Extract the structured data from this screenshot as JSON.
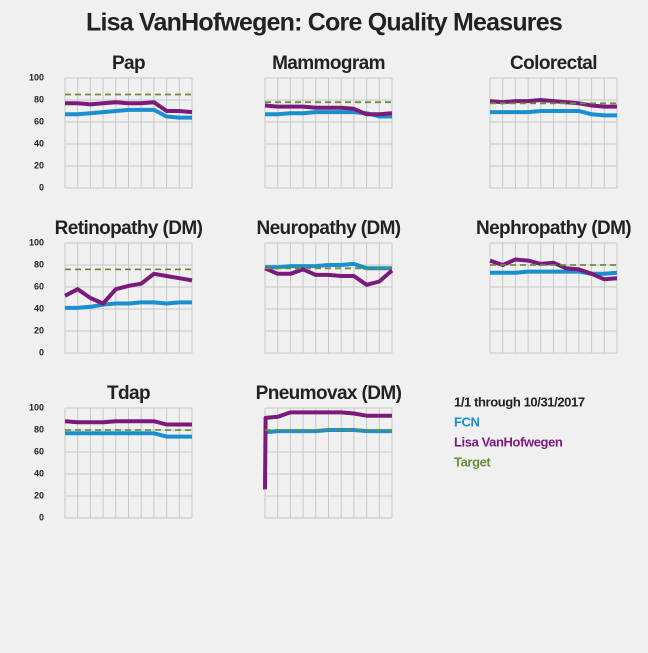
{
  "title": "Lisa VanHofwegen: Core Quality Measures",
  "legend_title": "1/1 through 10/31/2017",
  "chart_data": [
    {
      "type": "line",
      "title": "Pap",
      "show_ytick_labels": true,
      "x": [
        0,
        1,
        2,
        3,
        4,
        5,
        6,
        7,
        8,
        9,
        10
      ],
      "xlim": [
        0,
        10
      ],
      "xticks": [
        0,
        1,
        2,
        3,
        4,
        5,
        6,
        7,
        8,
        9,
        10
      ],
      "ylim": [
        0,
        100
      ],
      "yticks": [
        0,
        20,
        40,
        60,
        80,
        100
      ],
      "grid": true,
      "series": [
        {
          "name": "FCN",
          "color": "#1a8fcf",
          "values": [
            67,
            67,
            68,
            69,
            70,
            71,
            71,
            71,
            65,
            64,
            64
          ]
        },
        {
          "name": "Lisa VanHofwegen",
          "color": "#7b1a7b",
          "values": [
            77,
            77,
            76,
            77,
            78,
            77,
            77,
            78,
            70,
            70,
            69
          ]
        },
        {
          "name": "Target",
          "color": "#6b8e3a",
          "dashed": true,
          "values": [
            85,
            85,
            85,
            85,
            85,
            85,
            85,
            85,
            85,
            85,
            85
          ]
        }
      ]
    },
    {
      "type": "line",
      "title": "Mammogram",
      "show_ytick_labels": false,
      "x": [
        0,
        1,
        2,
        3,
        4,
        5,
        6,
        7,
        8,
        9,
        10
      ],
      "xlim": [
        0,
        10
      ],
      "xticks": [
        0,
        1,
        2,
        3,
        4,
        5,
        6,
        7,
        8,
        9,
        10
      ],
      "ylim": [
        0,
        100
      ],
      "yticks": [
        0,
        20,
        40,
        60,
        80,
        100
      ],
      "grid": true,
      "series": [
        {
          "name": "FCN",
          "color": "#1a8fcf",
          "values": [
            67,
            67,
            68,
            68,
            69,
            69,
            69,
            69,
            68,
            65,
            65
          ]
        },
        {
          "name": "Lisa VanHofwegen",
          "color": "#7b1a7b",
          "values": [
            75,
            74,
            74,
            74,
            73,
            73,
            73,
            72,
            67,
            67,
            68
          ]
        },
        {
          "name": "Target",
          "color": "#6b8e3a",
          "dashed": true,
          "values": [
            78,
            78,
            78,
            78,
            78,
            78,
            78,
            78,
            78,
            78,
            78
          ]
        }
      ]
    },
    {
      "type": "line",
      "title": "Colorectal",
      "show_ytick_labels": false,
      "x": [
        0,
        1,
        2,
        3,
        4,
        5,
        6,
        7,
        8,
        9,
        10
      ],
      "xlim": [
        0,
        10
      ],
      "xticks": [
        0,
        1,
        2,
        3,
        4,
        5,
        6,
        7,
        8,
        9,
        10
      ],
      "ylim": [
        0,
        100
      ],
      "yticks": [
        0,
        20,
        40,
        60,
        80,
        100
      ],
      "grid": true,
      "series": [
        {
          "name": "FCN",
          "color": "#1a8fcf",
          "values": [
            69,
            69,
            69,
            69,
            70,
            70,
            70,
            70,
            67,
            66,
            66
          ]
        },
        {
          "name": "Lisa VanHofwegen",
          "color": "#7b1a7b",
          "values": [
            79,
            78,
            79,
            79,
            80,
            79,
            78,
            77,
            75,
            74,
            74
          ]
        },
        {
          "name": "Target",
          "color": "#6b8e3a",
          "dashed": true,
          "values": [
            77,
            77,
            77,
            77,
            77,
            77,
            77,
            77,
            77,
            77,
            77
          ]
        }
      ]
    },
    {
      "type": "line",
      "title": "Retinopathy (DM)",
      "show_ytick_labels": true,
      "x": [
        0,
        1,
        2,
        3,
        4,
        5,
        6,
        7,
        8,
        9,
        10
      ],
      "xlim": [
        0,
        10
      ],
      "xticks": [
        0,
        1,
        2,
        3,
        4,
        5,
        6,
        7,
        8,
        9,
        10
      ],
      "ylim": [
        0,
        100
      ],
      "yticks": [
        0,
        20,
        40,
        60,
        80,
        100
      ],
      "grid": true,
      "series": [
        {
          "name": "FCN",
          "color": "#1a8fcf",
          "values": [
            41,
            41,
            42,
            44,
            45,
            45,
            46,
            46,
            45,
            46,
            46
          ]
        },
        {
          "name": "Lisa VanHofwegen",
          "color": "#7b1a7b",
          "values": [
            52,
            58,
            50,
            45,
            58,
            61,
            63,
            72,
            70,
            68,
            66
          ]
        },
        {
          "name": "Target",
          "color": "#6b8e3a",
          "dashed": true,
          "values": [
            76,
            76,
            76,
            76,
            76,
            76,
            76,
            76,
            76,
            76,
            76
          ]
        }
      ]
    },
    {
      "type": "line",
      "title": "Neuropathy (DM)",
      "show_ytick_labels": false,
      "x": [
        0,
        1,
        2,
        3,
        4,
        5,
        6,
        7,
        8,
        9,
        10
      ],
      "xlim": [
        0,
        10
      ],
      "xticks": [
        0,
        1,
        2,
        3,
        4,
        5,
        6,
        7,
        8,
        9,
        10
      ],
      "ylim": [
        0,
        100
      ],
      "yticks": [
        0,
        20,
        40,
        60,
        80,
        100
      ],
      "grid": true,
      "series": [
        {
          "name": "FCN",
          "color": "#1a8fcf",
          "values": [
            78,
            78,
            79,
            79,
            79,
            80,
            80,
            81,
            77,
            77,
            77
          ]
        },
        {
          "name": "Lisa VanHofwegen",
          "color": "#7b1a7b",
          "values": [
            77,
            72,
            72,
            76,
            71,
            71,
            70,
            70,
            62,
            65,
            75
          ]
        },
        {
          "name": "Target",
          "color": "#6b8e3a",
          "dashed": true,
          "values": [
            77,
            77,
            77,
            77,
            77,
            77,
            77,
            77,
            77,
            77,
            77
          ]
        }
      ]
    },
    {
      "type": "line",
      "title": "Nephropathy (DM)",
      "show_ytick_labels": false,
      "x": [
        0,
        1,
        2,
        3,
        4,
        5,
        6,
        7,
        8,
        9,
        10
      ],
      "xlim": [
        0,
        10
      ],
      "xticks": [
        0,
        1,
        2,
        3,
        4,
        5,
        6,
        7,
        8,
        9,
        10
      ],
      "ylim": [
        0,
        100
      ],
      "yticks": [
        0,
        20,
        40,
        60,
        80,
        100
      ],
      "grid": true,
      "series": [
        {
          "name": "FCN",
          "color": "#1a8fcf",
          "values": [
            73,
            73,
            73,
            74,
            74,
            74,
            74,
            74,
            72,
            72,
            73
          ]
        },
        {
          "name": "Lisa VanHofwegen",
          "color": "#7b1a7b",
          "values": [
            84,
            80,
            85,
            84,
            81,
            82,
            77,
            76,
            72,
            67,
            68
          ]
        },
        {
          "name": "Target",
          "color": "#6b8e3a",
          "dashed": true,
          "values": [
            80,
            80,
            80,
            80,
            80,
            80,
            80,
            80,
            80,
            80,
            80
          ]
        }
      ]
    },
    {
      "type": "line",
      "title": "Tdap",
      "show_ytick_labels": true,
      "x": [
        0,
        1,
        2,
        3,
        4,
        5,
        6,
        7,
        8,
        9,
        10
      ],
      "xlim": [
        0,
        10
      ],
      "xticks": [
        0,
        1,
        2,
        3,
        4,
        5,
        6,
        7,
        8,
        9,
        10
      ],
      "ylim": [
        0,
        100
      ],
      "yticks": [
        0,
        20,
        40,
        60,
        80,
        100
      ],
      "grid": true,
      "series": [
        {
          "name": "FCN",
          "color": "#1a8fcf",
          "values": [
            77,
            77,
            77,
            77,
            77,
            77,
            77,
            77,
            74,
            74,
            74
          ]
        },
        {
          "name": "Lisa VanHofwegen",
          "color": "#7b1a7b",
          "values": [
            88,
            87,
            87,
            87,
            88,
            88,
            88,
            88,
            85,
            85,
            85
          ]
        },
        {
          "name": "Target",
          "color": "#6b8e3a",
          "dashed": true,
          "values": [
            80,
            80,
            80,
            80,
            80,
            80,
            80,
            80,
            80,
            80,
            80
          ]
        }
      ]
    },
    {
      "type": "line",
      "title": "Pneumovax (DM)",
      "show_ytick_labels": false,
      "x": [
        0,
        0.05,
        1,
        2,
        3,
        4,
        5,
        6,
        7,
        8,
        9,
        10
      ],
      "xlim": [
        0,
        10
      ],
      "xticks": [
        0,
        1,
        2,
        3,
        4,
        5,
        6,
        7,
        8,
        9,
        10
      ],
      "ylim": [
        0,
        100
      ],
      "yticks": [
        0,
        20,
        40,
        60,
        80,
        100
      ],
      "grid": true,
      "series": [
        {
          "name": "FCN",
          "color": "#1a8fcf",
          "values": [
            78,
            78,
            79,
            79,
            79,
            79,
            80,
            80,
            80,
            79,
            79,
            79
          ]
        },
        {
          "name": "Lisa VanHofwegen",
          "color": "#7b1a7b",
          "values": [
            26,
            91,
            92,
            96,
            96,
            96,
            96,
            96,
            95,
            93,
            93,
            93
          ]
        },
        {
          "name": "Target",
          "color": "#6b8e3a",
          "dashed": true,
          "values": [
            80,
            80,
            80,
            80,
            80,
            80,
            80,
            80,
            80,
            80,
            80,
            80
          ]
        }
      ]
    }
  ]
}
